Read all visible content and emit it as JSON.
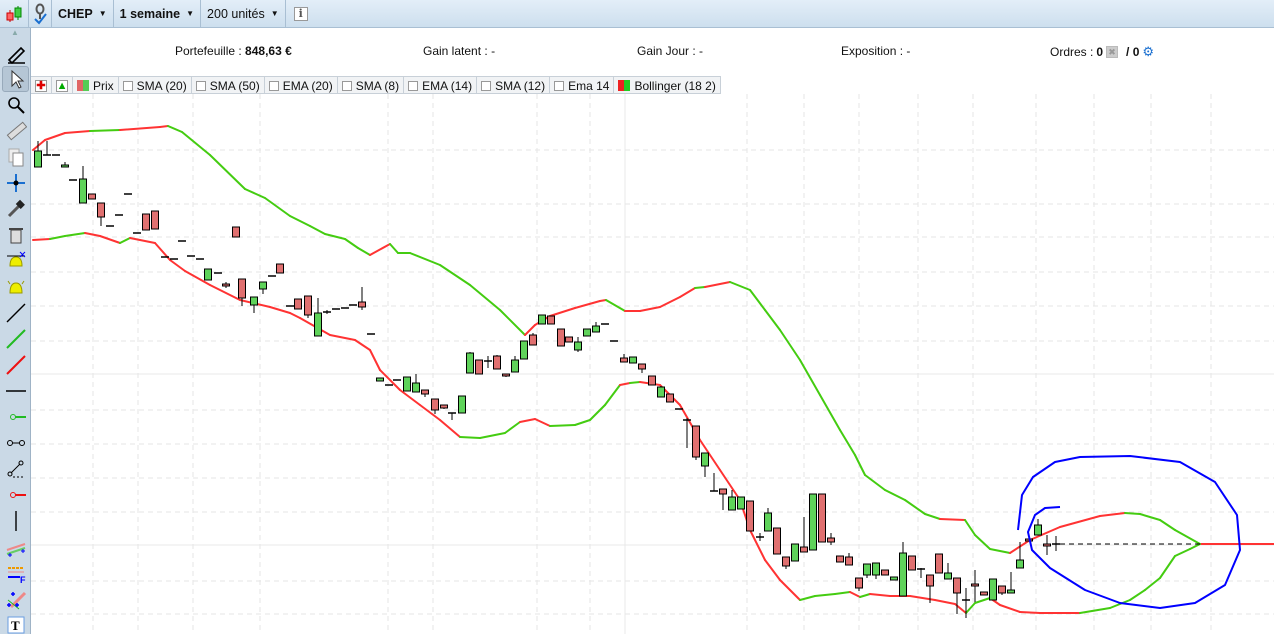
{
  "toolbar": {
    "symbol": "CHEP",
    "period": "1 semaine",
    "units": "200 unités",
    "icons": [
      "candlestick-chart-icon",
      "link-check-icon",
      "info-icon"
    ]
  },
  "info": {
    "portfolio_label": "Portefeuille :",
    "portfolio_value": "848,63 €",
    "gain_latent_label": "Gain latent :",
    "gain_latent_value": "-",
    "gain_jour_label": "Gain Jour :",
    "gain_jour_value": "-",
    "exposition_label": "Exposition :",
    "exposition_value": "-",
    "ordres_label": "Ordres :",
    "ordres_value": "0",
    "ordres_sep": "/ 0"
  },
  "legend": {
    "items": [
      {
        "label": "Prix",
        "checked": true
      },
      {
        "label": "SMA (20)",
        "checked": false
      },
      {
        "label": "SMA (50)",
        "checked": false
      },
      {
        "label": "EMA (20)",
        "checked": false
      },
      {
        "label": "SMA (8)",
        "checked": false
      },
      {
        "label": "EMA (14)",
        "checked": false
      },
      {
        "label": "SMA (12)",
        "checked": false
      },
      {
        "label": "Ema 14",
        "checked": false
      },
      {
        "label": "Bollinger (18 2)",
        "checked": true
      }
    ]
  },
  "sidebar": {
    "tools": [
      "pencil",
      "pointer",
      "zoom",
      "ruler",
      "copy",
      "move",
      "tools",
      "trash",
      "alert-cursor",
      "alert-bell",
      "line-black",
      "line-green",
      "line-red",
      "horizontal-line",
      "green-segment",
      "segment",
      "polyline",
      "red-segment",
      "vertical-line",
      "channel",
      "fibonacci",
      "pitchfork",
      "text"
    ]
  },
  "colors": {
    "up": "#5fd35a",
    "down": "#e07070",
    "band_up": "#ff3333",
    "band_down": "#44cc11",
    "annotation": "#0000ff"
  }
}
